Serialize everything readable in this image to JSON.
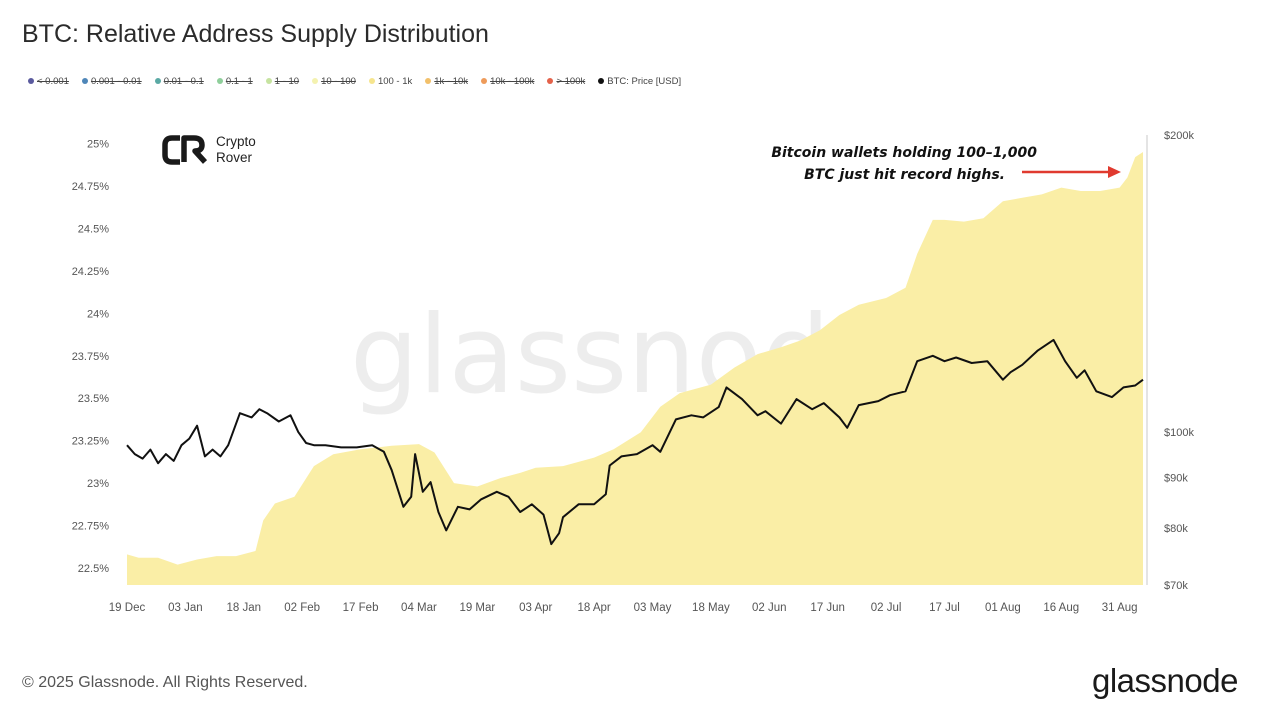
{
  "title": "BTC: Relative Address Supply Distribution",
  "legend": [
    {
      "label": "< 0.001",
      "color": "#5a5a9e",
      "off": true
    },
    {
      "label": "0.001 - 0.01",
      "color": "#4e86b8",
      "off": true
    },
    {
      "label": "0.01 - 0.1",
      "color": "#5aa9a4",
      "off": true
    },
    {
      "label": "0.1 - 1",
      "color": "#8fcf9b",
      "off": true
    },
    {
      "label": "1 - 10",
      "color": "#c6e3a0",
      "off": true
    },
    {
      "label": "10 - 100",
      "color": "#f4f2b0",
      "off": true
    },
    {
      "label": "100 - 1k",
      "color": "#f6e58e",
      "off": false
    },
    {
      "label": "1k - 10k",
      "color": "#f2c06a",
      "off": true
    },
    {
      "label": "10k - 100k",
      "color": "#ee9b5a",
      "off": true
    },
    {
      "label": "> 100k",
      "color": "#e4624a",
      "off": true
    },
    {
      "label": "BTC: Price [USD]",
      "color": "#111111",
      "off": false
    }
  ],
  "logo": {
    "line1": "Crypto",
    "line2": "Rover"
  },
  "annotation": {
    "line1": "Bitcoin wallets holding 100–1,000",
    "line2": "BTC just hit record highs."
  },
  "watermark": "glassnode",
  "footer": "© 2025 Glassnode. All Rights Reserved.",
  "brand": "glassnode",
  "colors": {
    "area_fill": "#faeea6",
    "price_line": "#111111",
    "arrow": "#e03a2f",
    "axis_line": "#c8c8c8"
  },
  "chart_data": {
    "type": "area",
    "title": "BTC: Relative Address Supply Distribution",
    "x_tick_labels": [
      "19 Dec",
      "03 Jan",
      "18 Jan",
      "02 Feb",
      "17 Feb",
      "04 Mar",
      "19 Mar",
      "03 Apr",
      "18 Apr",
      "03 May",
      "18 May",
      "02 Jun",
      "17 Jun",
      "02 Jul",
      "17 Jul",
      "01 Aug",
      "16 Aug",
      "31 Aug"
    ],
    "y_left_ticks": [
      "22.5%",
      "22.75%",
      "23%",
      "23.25%",
      "23.5%",
      "23.75%",
      "24%",
      "24.25%",
      "24.5%",
      "24.75%",
      "25%"
    ],
    "y_left_range": [
      22.4,
      25.05
    ],
    "y_right_ticks": [
      "$70k",
      "$80k",
      "$90k",
      "$100k",
      "$200k"
    ],
    "y_right_tick_values": [
      70000,
      80000,
      90000,
      100000,
      200000
    ],
    "y_right_scale": "log",
    "y_right_range": [
      70000,
      200000
    ],
    "grid": false,
    "legend_position": "top-left",
    "x_start": "2024-12-19",
    "series": [
      {
        "name": "100 - 1k",
        "axis": "left",
        "x": [
          "2024-12-19",
          "2024-12-22",
          "2024-12-27",
          "2025-01-01",
          "2025-01-06",
          "2025-01-11",
          "2025-01-16",
          "2025-01-21",
          "2025-01-23",
          "2025-01-26",
          "2025-01-31",
          "2025-02-05",
          "2025-02-10",
          "2025-02-17",
          "2025-02-25",
          "2025-03-04",
          "2025-03-08",
          "2025-03-13",
          "2025-03-19",
          "2025-03-25",
          "2025-03-30",
          "2025-04-03",
          "2025-04-10",
          "2025-04-18",
          "2025-04-23",
          "2025-04-30",
          "2025-05-05",
          "2025-05-10",
          "2025-05-18",
          "2025-05-24",
          "2025-05-30",
          "2025-06-05",
          "2025-06-10",
          "2025-06-15",
          "2025-06-20",
          "2025-06-25",
          "2025-07-02",
          "2025-07-07",
          "2025-07-10",
          "2025-07-14",
          "2025-07-17",
          "2025-07-22",
          "2025-07-27",
          "2025-08-01",
          "2025-08-06",
          "2025-08-11",
          "2025-08-16",
          "2025-08-21",
          "2025-08-26",
          "2025-08-31",
          "2025-09-02",
          "2025-09-04",
          "2025-09-06"
        ],
        "values": [
          22.58,
          22.56,
          22.56,
          22.52,
          22.55,
          22.57,
          22.57,
          22.6,
          22.78,
          22.88,
          22.92,
          23.1,
          23.17,
          23.2,
          23.22,
          23.23,
          23.18,
          23.0,
          22.98,
          23.03,
          23.06,
          23.09,
          23.1,
          23.15,
          23.2,
          23.3,
          23.45,
          23.53,
          23.58,
          23.68,
          23.76,
          23.8,
          23.84,
          23.9,
          23.99,
          24.05,
          24.09,
          24.15,
          24.35,
          24.55,
          24.55,
          24.54,
          24.56,
          24.66,
          24.68,
          24.7,
          24.74,
          24.72,
          24.72,
          24.74,
          24.8,
          24.92,
          24.95
        ]
      },
      {
        "name": "BTC: Price [USD]",
        "axis": "right",
        "x": [
          "2024-12-19",
          "2024-12-21",
          "2024-12-23",
          "2024-12-25",
          "2024-12-27",
          "2024-12-29",
          "2024-12-31",
          "2025-01-02",
          "2025-01-04",
          "2025-01-06",
          "2025-01-08",
          "2025-01-10",
          "2025-01-12",
          "2025-01-14",
          "2025-01-17",
          "2025-01-20",
          "2025-01-22",
          "2025-01-24",
          "2025-01-27",
          "2025-01-30",
          "2025-02-01",
          "2025-02-03",
          "2025-02-05",
          "2025-02-08",
          "2025-02-12",
          "2025-02-16",
          "2025-02-20",
          "2025-02-23",
          "2025-02-25",
          "2025-02-28",
          "2025-03-02",
          "2025-03-03",
          "2025-03-05",
          "2025-03-07",
          "2025-03-09",
          "2025-03-11",
          "2025-03-14",
          "2025-03-17",
          "2025-03-20",
          "2025-03-24",
          "2025-03-27",
          "2025-03-30",
          "2025-04-02",
          "2025-04-05",
          "2025-04-07",
          "2025-04-09",
          "2025-04-10",
          "2025-04-14",
          "2025-04-18",
          "2025-04-21",
          "2025-04-22",
          "2025-04-25",
          "2025-04-29",
          "2025-05-03",
          "2025-05-05",
          "2025-05-09",
          "2025-05-13",
          "2025-05-16",
          "2025-05-20",
          "2025-05-22",
          "2025-05-26",
          "2025-05-30",
          "2025-06-01",
          "2025-06-05",
          "2025-06-09",
          "2025-06-13",
          "2025-06-16",
          "2025-06-20",
          "2025-06-22",
          "2025-06-25",
          "2025-06-30",
          "2025-07-03",
          "2025-07-07",
          "2025-07-10",
          "2025-07-14",
          "2025-07-17",
          "2025-07-20",
          "2025-07-24",
          "2025-07-28",
          "2025-08-01",
          "2025-08-03",
          "2025-08-06",
          "2025-08-10",
          "2025-08-14",
          "2025-08-17",
          "2025-08-20",
          "2025-08-22",
          "2025-08-25",
          "2025-08-29",
          "2025-09-01",
          "2025-09-04",
          "2025-09-06"
        ],
        "values": [
          97000,
          95000,
          94000,
          96000,
          93000,
          95000,
          93500,
          97000,
          98500,
          101500,
          94500,
          96000,
          94500,
          97000,
          104500,
          103500,
          105500,
          104500,
          102500,
          104000,
          100000,
          97500,
          97000,
          97000,
          96500,
          96500,
          97000,
          95500,
          91500,
          84000,
          86000,
          95000,
          87000,
          89000,
          83000,
          79500,
          84000,
          83500,
          85500,
          87000,
          86000,
          83000,
          84500,
          82500,
          77000,
          79000,
          82000,
          84500,
          84500,
          86500,
          92500,
          94500,
          95000,
          97000,
          95500,
          103000,
          104000,
          103500,
          106000,
          111000,
          108000,
          104000,
          105000,
          102000,
          108000,
          105500,
          107000,
          103500,
          101000,
          106500,
          107500,
          109000,
          110000,
          118000,
          119500,
          118000,
          119000,
          117500,
          118000,
          113000,
          115000,
          117000,
          121000,
          124000,
          118000,
          113500,
          115500,
          110000,
          108500,
          111000,
          111500,
          113000
        ]
      }
    ]
  }
}
